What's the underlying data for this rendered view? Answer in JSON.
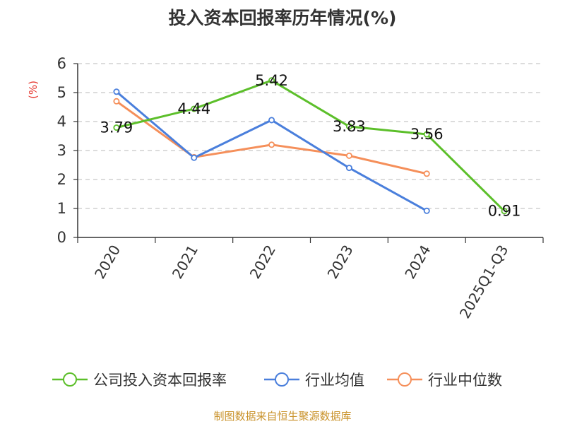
{
  "chart_data": {
    "type": "line",
    "title": "投入资本回报率历年情况(%)",
    "ylabel": "(%)",
    "xlabel": "",
    "categories": [
      "2020",
      "2021",
      "2022",
      "2023",
      "2024",
      "2025Q1-Q3"
    ],
    "yticks": [
      "0",
      "1",
      "2",
      "3",
      "4",
      "5",
      "6"
    ],
    "ylim": [
      0,
      6
    ],
    "grid": true,
    "legend_position": "bottom",
    "series": [
      {
        "name": "公司投入资本回报率",
        "color": "#5cbf2a",
        "values": [
          3.79,
          4.44,
          5.42,
          3.83,
          3.56,
          0.91
        ],
        "labels": [
          "3.79",
          "4.44",
          "5.42",
          "3.83",
          "3.56",
          "0.91"
        ]
      },
      {
        "name": "行业均值",
        "color": "#4a7fdc",
        "values": [
          5.03,
          2.75,
          4.05,
          2.4,
          0.92,
          null
        ]
      },
      {
        "name": "行业中位数",
        "color": "#f58f5a",
        "values": [
          4.7,
          2.77,
          3.2,
          2.82,
          2.2,
          null
        ]
      }
    ]
  },
  "source": "制图数据来自恒生聚源数据库"
}
